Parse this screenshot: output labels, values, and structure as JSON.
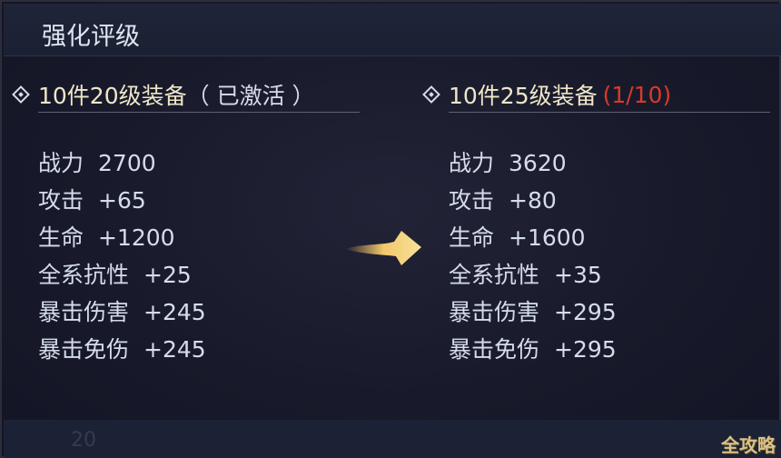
{
  "header": {
    "title": "强化评级"
  },
  "left": {
    "title": "10件20级装备",
    "status": "（ 已激活 ）",
    "stats": [
      {
        "label": "战力",
        "value": "2700"
      },
      {
        "label": "攻击",
        "value": "+65"
      },
      {
        "label": "生命",
        "value": "+1200"
      },
      {
        "label": "全系抗性",
        "value": "+25"
      },
      {
        "label": "暴击伤害",
        "value": "+245"
      },
      {
        "label": "暴击免伤",
        "value": "+245"
      }
    ]
  },
  "right": {
    "title": "10件25级装备",
    "progress": "(1/10)",
    "stats": [
      {
        "label": "战力",
        "value": "3620"
      },
      {
        "label": "攻击",
        "value": "+80"
      },
      {
        "label": "生命",
        "value": "+1600"
      },
      {
        "label": "全系抗性",
        "value": "+35"
      },
      {
        "label": "暴击伤害",
        "value": "+295"
      },
      {
        "label": "暴击免伤",
        "value": "+295"
      }
    ]
  },
  "background_text": "20",
  "watermark": "全攻略",
  "colors": {
    "accent_gold": "#efe6c8",
    "progress_red": "#d83a2a",
    "text": "#d5dcec"
  }
}
